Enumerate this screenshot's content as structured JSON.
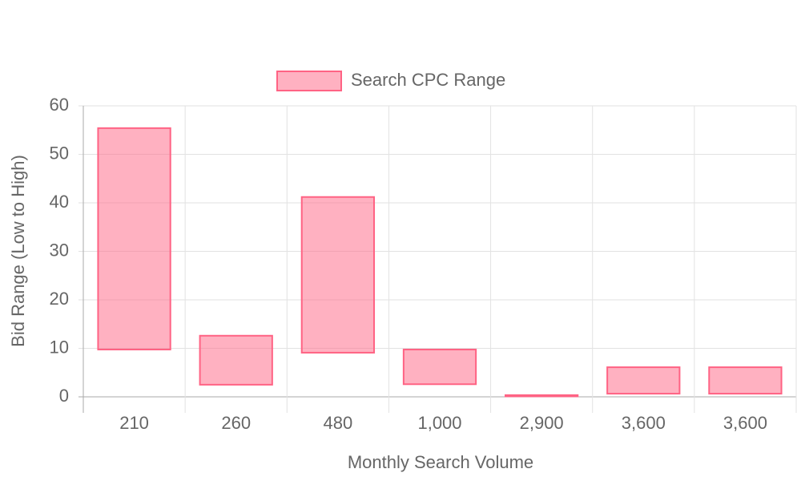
{
  "chart_data": {
    "type": "floating-bar",
    "categories": [
      "210",
      "260",
      "480",
      "1,000",
      "2,900",
      "3,600",
      "3,600"
    ],
    "series": [
      {
        "name": "Search CPC Range",
        "color": "#ff6384",
        "values": [
          [
            9.75,
            55.4
          ],
          [
            2.5,
            12.6
          ],
          [
            9.1,
            41.2
          ],
          [
            2.6,
            9.75
          ],
          [
            0.1,
            0.35
          ],
          [
            0.65,
            6.1
          ],
          [
            0.65,
            6.1
          ]
        ]
      }
    ],
    "x_label": "Monthly Search Volume",
    "y_label": "Bid Range (Low to High)",
    "ylim": [
      0,
      60
    ],
    "yticks": [
      0,
      10,
      20,
      30,
      40,
      50,
      60
    ],
    "grid": true,
    "legend": "top"
  }
}
